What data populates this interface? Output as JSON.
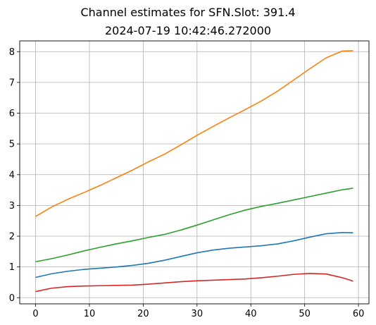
{
  "title": "Channel estimates for SFN.Slot: 391.4",
  "subtitle": "2024-07-19 10:42:46.272000",
  "chart_data": {
    "type": "line",
    "title": "Channel estimates for SFN.Slot: 391.4",
    "subtitle": "2024-07-19 10:42:46.272000",
    "xlabel": "",
    "ylabel": "",
    "xlim": [
      -2.95,
      61.95
    ],
    "ylim": [
      -0.2,
      8.35
    ],
    "xticks": [
      0,
      10,
      20,
      30,
      40,
      50,
      60
    ],
    "yticks": [
      0,
      1,
      2,
      3,
      4,
      5,
      6,
      7,
      8
    ],
    "grid": true,
    "x": [
      0,
      3,
      6,
      9,
      12,
      15,
      18,
      21,
      24,
      27,
      30,
      33,
      36,
      39,
      42,
      45,
      48,
      51,
      54,
      57,
      59
    ],
    "series": [
      {
        "color": "#1f77b4",
        "values": [
          0.66,
          0.78,
          0.86,
          0.92,
          0.96,
          1.0,
          1.05,
          1.12,
          1.22,
          1.34,
          1.46,
          1.55,
          1.61,
          1.65,
          1.69,
          1.75,
          1.85,
          1.97,
          2.08,
          2.12,
          2.11
        ]
      },
      {
        "color": "#ff7f0e",
        "values": [
          2.64,
          2.95,
          3.2,
          3.42,
          3.65,
          3.9,
          4.15,
          4.42,
          4.67,
          4.97,
          5.28,
          5.57,
          5.85,
          6.12,
          6.4,
          6.72,
          7.08,
          7.45,
          7.8,
          8.02,
          8.03
        ]
      },
      {
        "color": "#2ca02c",
        "values": [
          1.17,
          1.27,
          1.39,
          1.52,
          1.64,
          1.75,
          1.85,
          1.96,
          2.06,
          2.2,
          2.36,
          2.53,
          2.7,
          2.85,
          2.97,
          3.07,
          3.18,
          3.29,
          3.4,
          3.51,
          3.56
        ]
      },
      {
        "color": "#d62728",
        "values": [
          0.2,
          0.31,
          0.36,
          0.38,
          0.39,
          0.4,
          0.41,
          0.44,
          0.48,
          0.52,
          0.55,
          0.57,
          0.59,
          0.61,
          0.65,
          0.7,
          0.76,
          0.79,
          0.77,
          0.65,
          0.54
        ]
      }
    ]
  }
}
